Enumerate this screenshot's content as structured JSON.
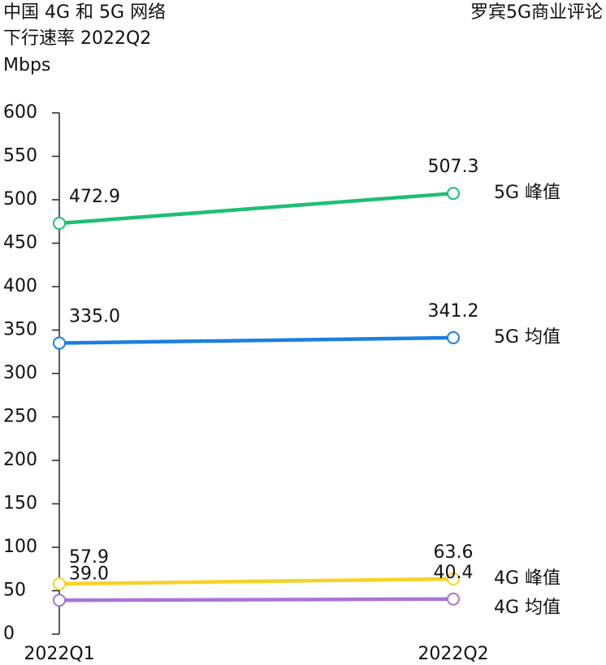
{
  "chart_data": {
    "type": "line",
    "title": [
      "中国 4G 和 5G 网络",
      "下行速率 2022Q2",
      "Mbps"
    ],
    "source": "罗宾5G商业评论",
    "categories": [
      "2022Q1",
      "2022Q2"
    ],
    "series": [
      {
        "name": "5G 峰值",
        "color": "#1dbf73",
        "values": [
          472.9,
          507.3
        ],
        "value_labels": [
          "472.9",
          "507.3"
        ]
      },
      {
        "name": "5G 均值",
        "color": "#1a7fe0",
        "values": [
          335.0,
          341.2
        ],
        "value_labels": [
          "335.0",
          "341.2"
        ]
      },
      {
        "name": "4G 峰值",
        "color": "#f5d327",
        "values": [
          57.9,
          63.6
        ],
        "value_labels": [
          "57.9",
          "63.6"
        ]
      },
      {
        "name": "4G 均值",
        "color": "#a974d6",
        "values": [
          39.0,
          40.4
        ],
        "value_labels": [
          "39.0",
          "40.4"
        ]
      }
    ],
    "ylim": [
      0,
      600
    ],
    "yticks": [
      0,
      50,
      100,
      150,
      200,
      250,
      300,
      350,
      400,
      450,
      500,
      550,
      600
    ]
  }
}
